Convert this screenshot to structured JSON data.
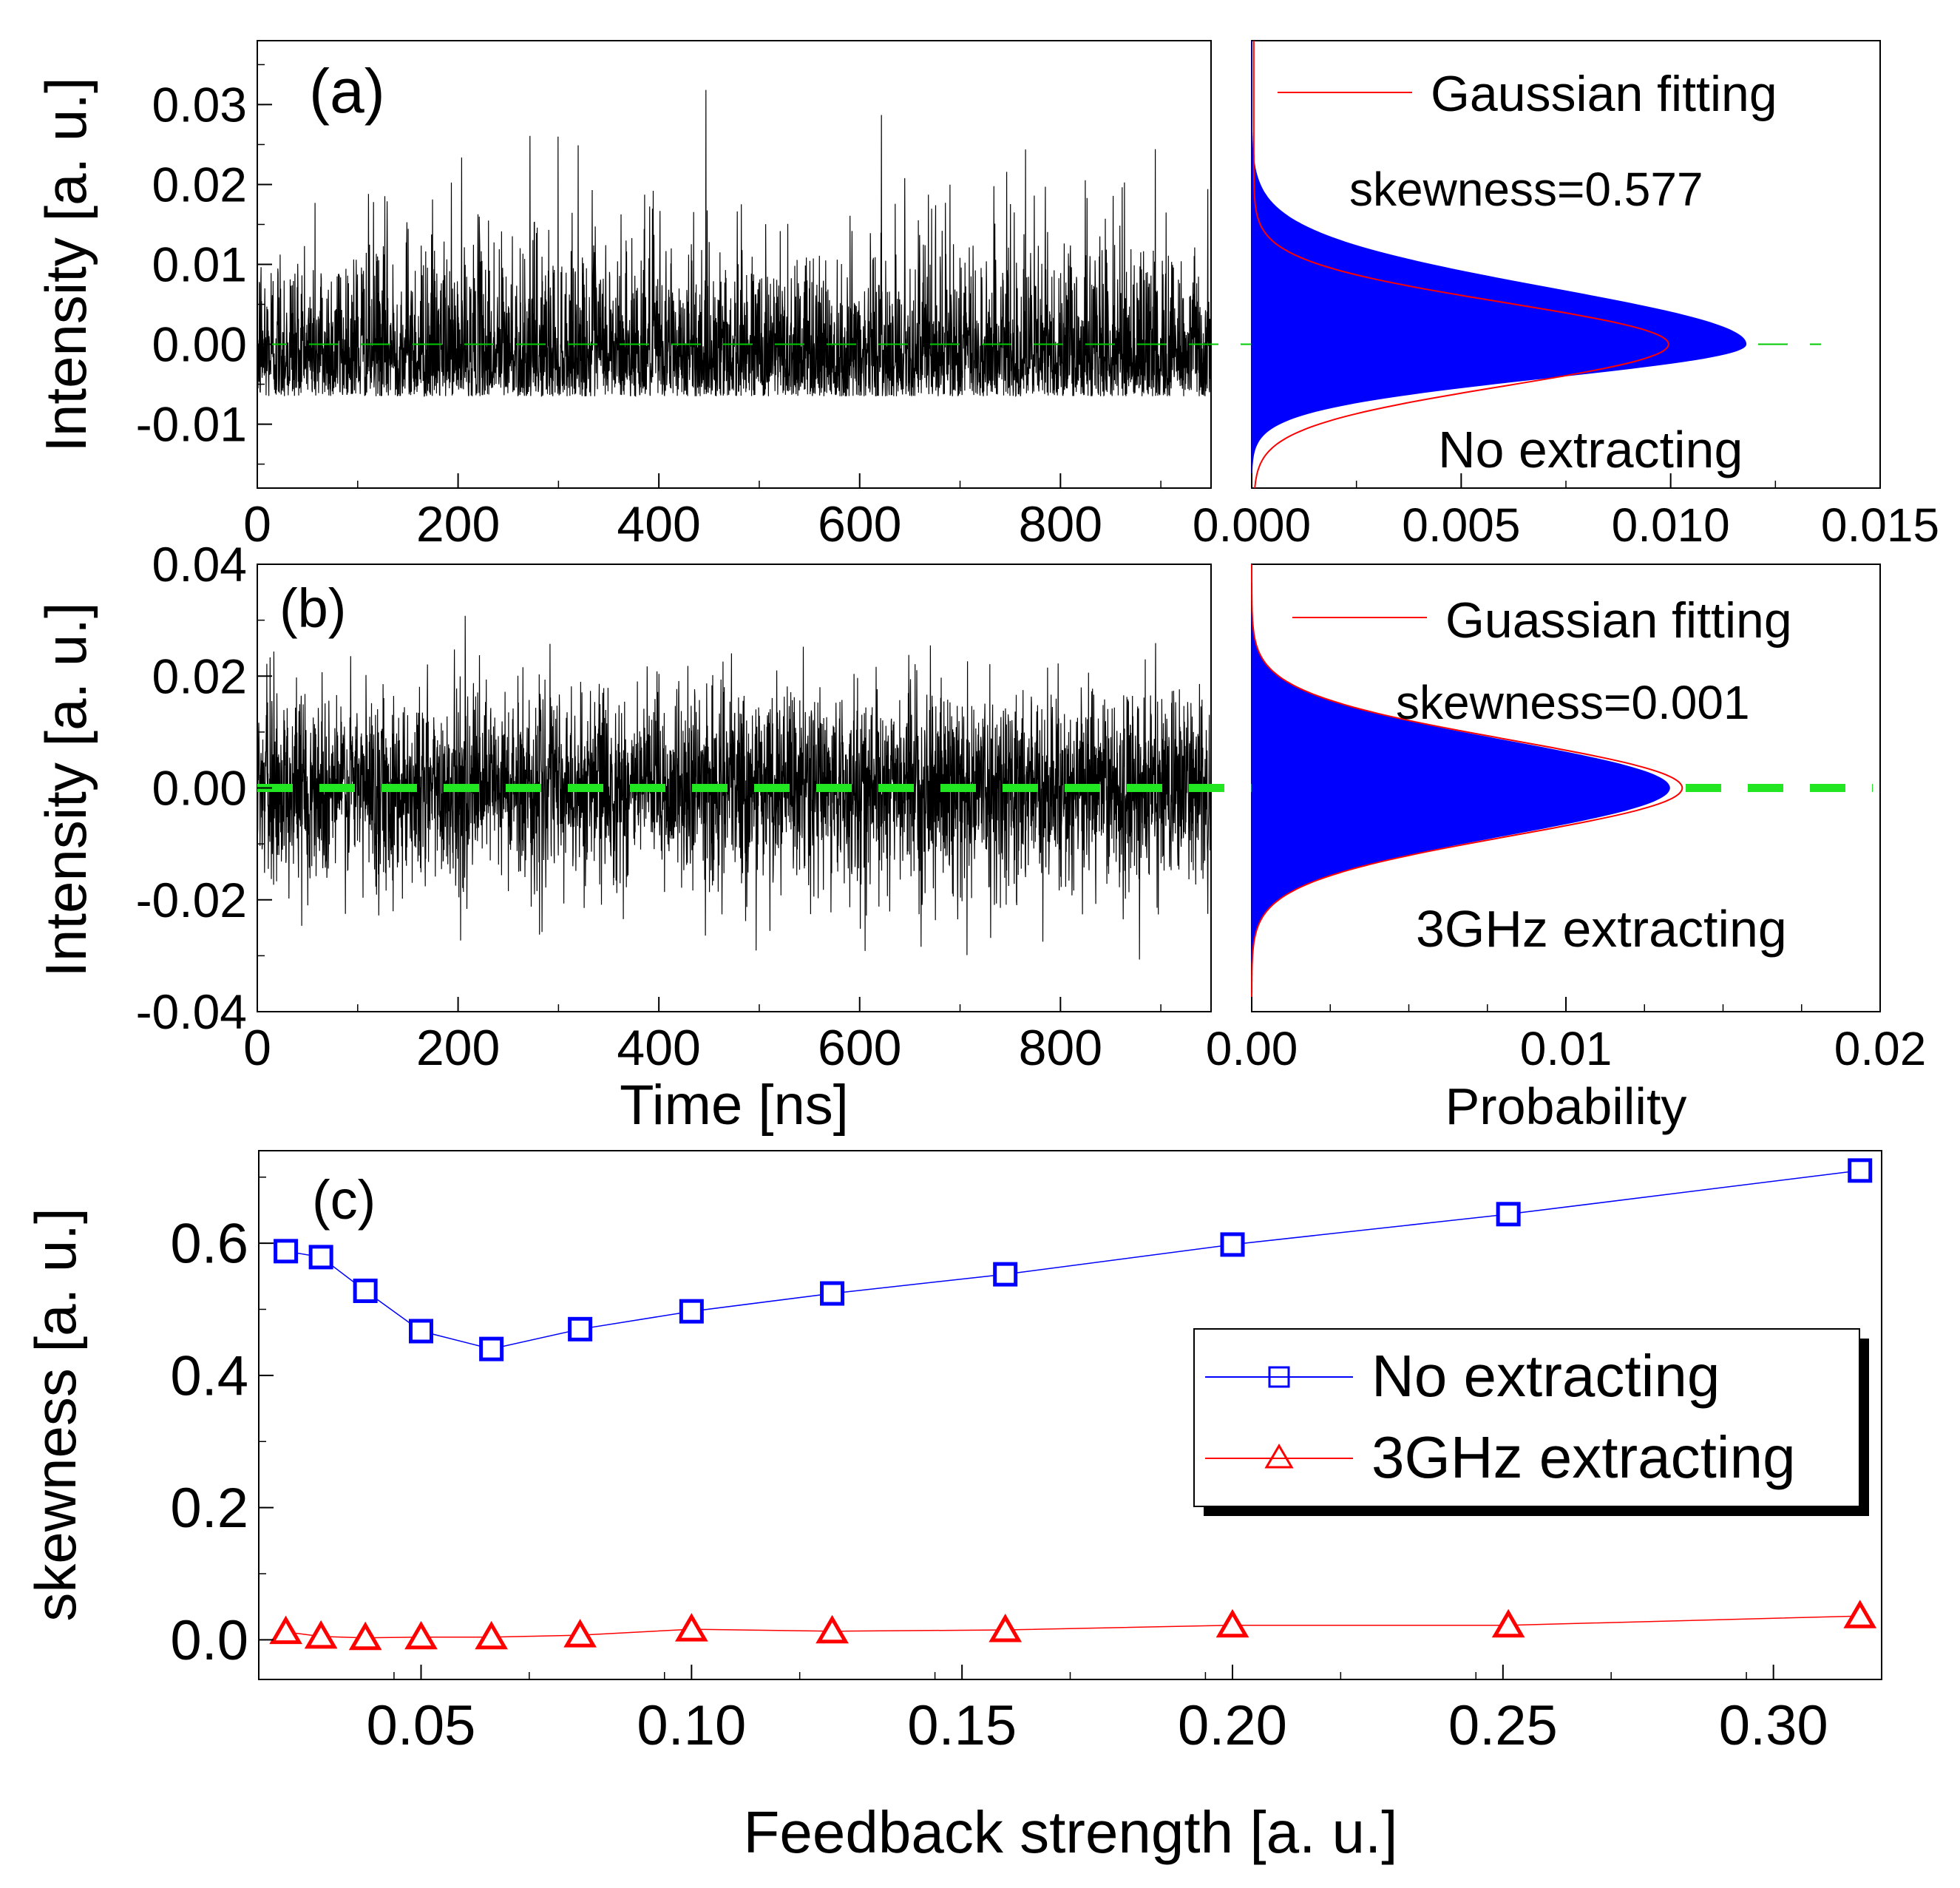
{
  "chart_data": [
    {
      "panel": "(a)",
      "type": "line",
      "title": "",
      "panel_label": "(a)",
      "xlabel": "",
      "ylabel": "Intensity [a. u.]",
      "xlim": [
        0,
        950
      ],
      "ylim": [
        -0.018,
        0.038
      ],
      "xticks": [
        "0",
        "200",
        "400",
        "600",
        "800"
      ],
      "yticks": [
        "0.03",
        "0.02",
        "0.01",
        "0.00",
        "-0.01"
      ],
      "series": [
        {
          "name": "intensity time series",
          "color": "#000000",
          "amplitude_std": 0.0052,
          "skewness": 0.577,
          "duration_ns": 950
        },
        {
          "name": "zero line",
          "color": "#00c800",
          "value": 0.0,
          "style": "dashed"
        }
      ]
    },
    {
      "panel": "(a) histogram",
      "type": "bar",
      "title": "",
      "xlabel": "",
      "ylabel": "",
      "xlim": [
        0.0,
        0.015
      ],
      "ylim": [
        -0.018,
        0.038
      ],
      "xticks": [
        "0.000",
        "0.005",
        "0.010",
        "0.015"
      ],
      "peak_probability": 0.0118,
      "fit_peak": 0.0099,
      "legend": [
        "Gaussian fitting"
      ],
      "annotations": [
        "skewness=0.577",
        "No extracting"
      ],
      "colors": {
        "bars": "#0000ff",
        "fit": "#ff0000",
        "zero": "#00c800"
      }
    },
    {
      "panel": "(b)",
      "type": "line",
      "title": "",
      "panel_label": "(b)",
      "xlabel": "Time [ns]",
      "ylabel": "Intensity [a. u.]",
      "xlim": [
        0,
        950
      ],
      "ylim": [
        -0.04,
        0.04
      ],
      "xticks": [
        "0",
        "200",
        "400",
        "600",
        "800"
      ],
      "yticks": [
        "0.04",
        "0.02",
        "0.00",
        "-0.02",
        "-0.04"
      ],
      "series": [
        {
          "name": "intensity time series",
          "color": "#000000",
          "amplitude_std": 0.0085,
          "skewness": 0.001,
          "duration_ns": 950
        },
        {
          "name": "zero line",
          "color": "#22e622",
          "value": 0.0,
          "style": "dashed-thick"
        }
      ]
    },
    {
      "panel": "(b) histogram",
      "type": "bar",
      "title": "",
      "xlabel": "Probability",
      "ylabel": "",
      "xlim": [
        0.0,
        0.02
      ],
      "ylim": [
        -0.04,
        0.04
      ],
      "xticks": [
        "0.00",
        "0.01",
        "0.02"
      ],
      "peak_probability": 0.0133,
      "fit_peak": 0.0137,
      "legend": [
        "Guassian fitting"
      ],
      "annotations": [
        "skewness=0.001",
        "3GHz extracting"
      ],
      "colors": {
        "bars": "#0000ff",
        "fit": "#ff0000",
        "zero": "#22e622"
      }
    },
    {
      "panel": "(c)",
      "type": "scatter",
      "title": "",
      "panel_label": "(c)",
      "xlabel": "Feedback strength [a. u.]",
      "ylabel": "skewness [a. u.]",
      "xlim": [
        0.02,
        0.32
      ],
      "ylim": [
        -0.06,
        0.74
      ],
      "xticks": [
        "0.05",
        "0.10",
        "0.15",
        "0.20",
        "0.25",
        "0.30"
      ],
      "yticks": [
        "0.0",
        "0.2",
        "0.4",
        "0.6"
      ],
      "x": [
        0.025,
        0.0315,
        0.0397,
        0.05,
        0.063,
        0.0794,
        0.1,
        0.126,
        0.158,
        0.2,
        0.251,
        0.316
      ],
      "series": [
        {
          "name": "No extracting",
          "color": "#0000ff",
          "marker": "square",
          "values": [
            0.588,
            0.579,
            0.528,
            0.467,
            0.44,
            0.47,
            0.497,
            0.524,
            0.553,
            0.598,
            0.644,
            0.71
          ]
        },
        {
          "name": "3GHz extracting",
          "color": "#ff0000",
          "marker": "triangle",
          "values": [
            0.012,
            0.005,
            0.003,
            0.004,
            0.004,
            0.007,
            0.016,
            0.013,
            0.015,
            0.022,
            0.022,
            0.036
          ]
        }
      ]
    }
  ]
}
